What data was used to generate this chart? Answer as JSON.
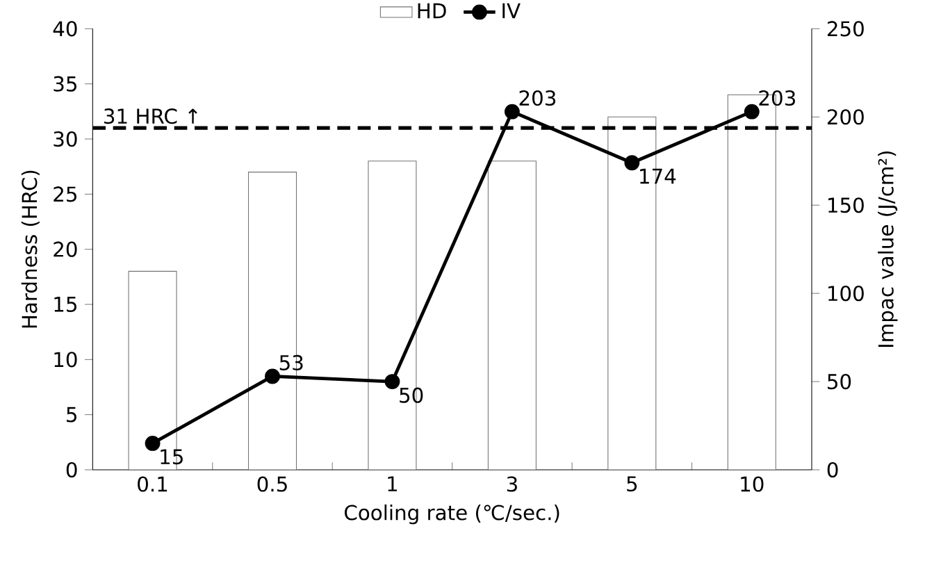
{
  "chart_data": {
    "type": "bar",
    "xlabel": "Cooling rate (℃/sec.)",
    "ylabel": "Hardness (HRC)",
    "y2label": "Impac value (J/cm²)",
    "categories": [
      "0.1",
      "0.5",
      "1",
      "3",
      "5",
      "10"
    ],
    "series": [
      {
        "name": "HD",
        "color": "#ffffff",
        "values": [
          18,
          27,
          28,
          28,
          32,
          34
        ]
      },
      {
        "name": "IV",
        "type": "line",
        "axis": "y2",
        "color": "#000000",
        "marker": "circle",
        "values": [
          15,
          53,
          50,
          203,
          174,
          203
        ],
        "value_labels": [
          "15",
          "53",
          "50",
          "203",
          "174",
          "203"
        ]
      }
    ],
    "ylim": [
      0,
      40
    ],
    "yticks": [
      0,
      5,
      10,
      15,
      20,
      25,
      30,
      35,
      40
    ],
    "y2lim": [
      0,
      250
    ],
    "y2ticks": [
      0,
      50,
      100,
      150,
      200,
      250
    ],
    "ref_lines": [
      {
        "axis": "y",
        "value": 31,
        "label": "31 HRC ↑",
        "color": "#000000",
        "line_style": "dashed"
      }
    ],
    "legend": "top"
  }
}
